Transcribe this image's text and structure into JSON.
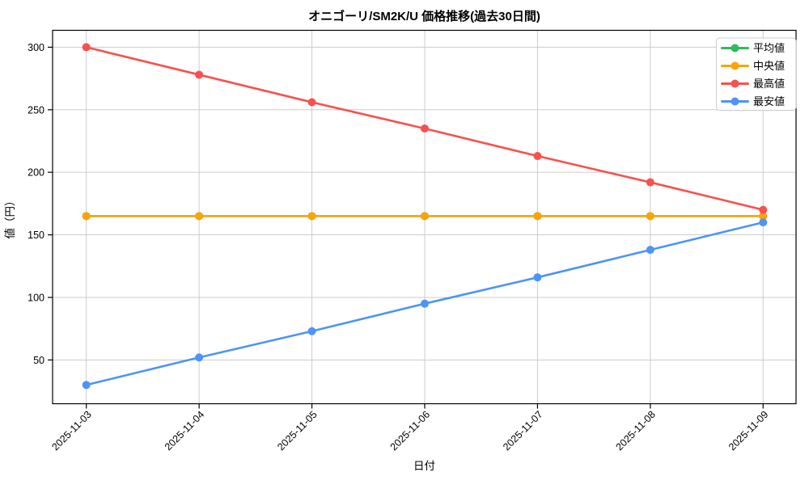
{
  "figure": {
    "background": "#ffffff",
    "plot_border_color": "#000000",
    "grid_color": "#cccccc"
  },
  "chart_data": {
    "type": "line",
    "title": "オニゴーリ/SM2K/U 価格推移(過去30日間)",
    "xlabel": "日付",
    "ylabel": "値（円）",
    "categories": [
      "2025-11-03",
      "2025-11-04",
      "2025-11-05",
      "2025-11-06",
      "2025-11-07",
      "2025-11-08",
      "2025-11-09"
    ],
    "series": [
      {
        "name": "平均値",
        "color": "#30b95f",
        "values": [
          165,
          165,
          165,
          165,
          165,
          165,
          165
        ]
      },
      {
        "name": "中央値",
        "color": "#f9a408",
        "values": [
          165,
          165,
          165,
          165,
          165,
          165,
          165
        ]
      },
      {
        "name": "最高値",
        "color": "#f8514e",
        "values": [
          300,
          278,
          256,
          235,
          213,
          192,
          170
        ]
      },
      {
        "name": "最安値",
        "color": "#4d94f6",
        "values": [
          30,
          52,
          73,
          95,
          116,
          138,
          160
        ]
      }
    ],
    "yticks": [
      50,
      100,
      150,
      200,
      250,
      300
    ],
    "ylim": [
      15,
      313.5
    ],
    "grid": true,
    "legend_position": "upper right",
    "x_tick_rotation": 45
  }
}
